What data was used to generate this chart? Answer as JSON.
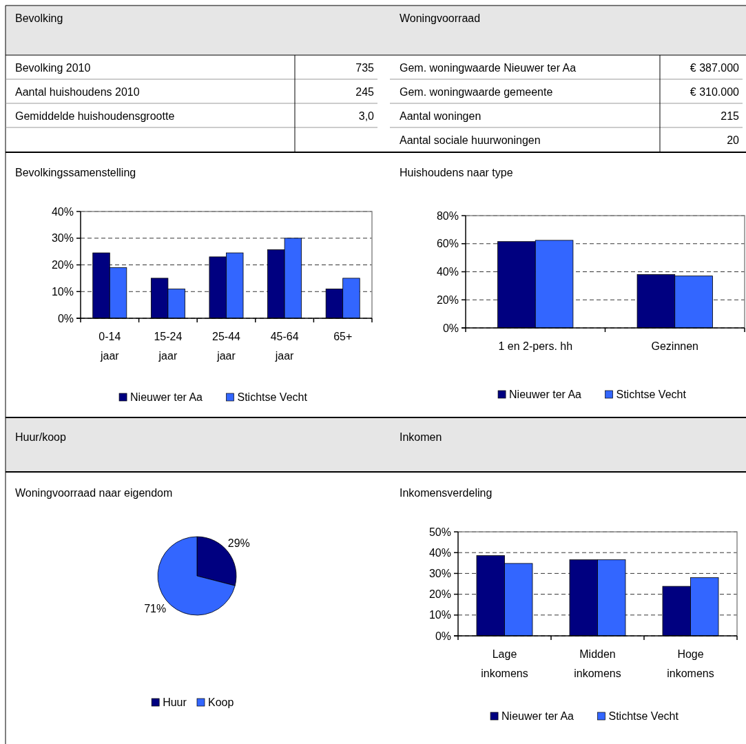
{
  "chart_data": [
    {
      "type": "other",
      "title": "Bevolking",
      "annotations": [
        "Bevolking 2010",
        "735",
        "Aantal huishoudens 2010",
        "245",
        "Gemiddelde huishoudensgrootte",
        "3,0"
      ]
    },
    {
      "type": "other",
      "title": "Woningvoorraad",
      "annotations": [
        "Gem. woningwaarde Nieuwer ter Aa",
        "€ 387.000",
        "Gem. woningwaarde gemeente",
        "€ 310.000",
        "Aantal woningen",
        "215",
        "Aantal sociale huurwoningen",
        "20"
      ]
    },
    {
      "type": "bar",
      "title": "Bevolkingssamenstelling",
      "categories": [
        "0-14 jaar",
        "15-24 jaar",
        "25-44 jaar",
        "45-64 jaar",
        "65+"
      ],
      "series": [
        {
          "name": "Nieuwer ter Aa",
          "color": "#000080",
          "values": [
            24.5,
            15,
            23,
            25.7,
            11
          ]
        },
        {
          "name": "Stichtse Vecht",
          "color": "#3366ff",
          "values": [
            19,
            11,
            24.5,
            30,
            15
          ]
        }
      ],
      "ylim": [
        0,
        40
      ],
      "yticks": [
        {
          "value": 0,
          "label": "0%"
        },
        {
          "value": 10,
          "label": "10%"
        },
        {
          "value": 20,
          "label": "20%"
        },
        {
          "value": 30,
          "label": "30%"
        },
        {
          "value": 40,
          "label": "40%"
        }
      ],
      "grid": "y",
      "legend": "bottom"
    },
    {
      "type": "bar",
      "title": "Huishoudens naar type",
      "categories": [
        "1 en 2-pers. hh",
        "Gezinnen"
      ],
      "series": [
        {
          "name": "Nieuwer ter Aa",
          "color": "#000080",
          "values": [
            61.5,
            38
          ]
        },
        {
          "name": "Stichtse Vecht",
          "color": "#3366ff",
          "values": [
            62.4,
            37
          ]
        }
      ],
      "ylim": [
        0,
        80
      ],
      "yticks": [
        {
          "value": 0,
          "label": "0%"
        },
        {
          "value": 20,
          "label": "20%"
        },
        {
          "value": 40,
          "label": "40%"
        },
        {
          "value": 60,
          "label": "60%"
        },
        {
          "value": 80,
          "label": "80%"
        }
      ],
      "grid": "y",
      "legend": "bottom"
    },
    {
      "type": "pie",
      "subtitle": "Huur/koop",
      "title": "Woningvoorraad naar eigendom",
      "categories": [
        "Huur",
        "Koop"
      ],
      "values": [
        29,
        71
      ],
      "colors": [
        "#000080",
        "#3366ff"
      ],
      "value_labels": [
        "29%",
        "71%"
      ],
      "legend": "bottom"
    },
    {
      "type": "bar",
      "subtitle": "Inkomen",
      "title": "Inkomensverdeling",
      "categories": [
        "Lage inkomens",
        "Midden inkomens",
        "Hoge inkomens"
      ],
      "series": [
        {
          "name": "Nieuwer ter Aa",
          "color": "#000080",
          "values": [
            38.6,
            36.6,
            23.8
          ]
        },
        {
          "name": "Stichtse Vecht",
          "color": "#3366ff",
          "values": [
            34.8,
            36.6,
            28
          ]
        }
      ],
      "ylim": [
        0,
        50
      ],
      "yticks": [
        {
          "value": 0,
          "label": "0%"
        },
        {
          "value": 10,
          "label": "10%"
        },
        {
          "value": 20,
          "label": "20%"
        },
        {
          "value": 30,
          "label": "30%"
        },
        {
          "value": 40,
          "label": "40%"
        },
        {
          "value": 50,
          "label": "50%"
        }
      ],
      "grid": "y",
      "legend": "bottom"
    }
  ]
}
